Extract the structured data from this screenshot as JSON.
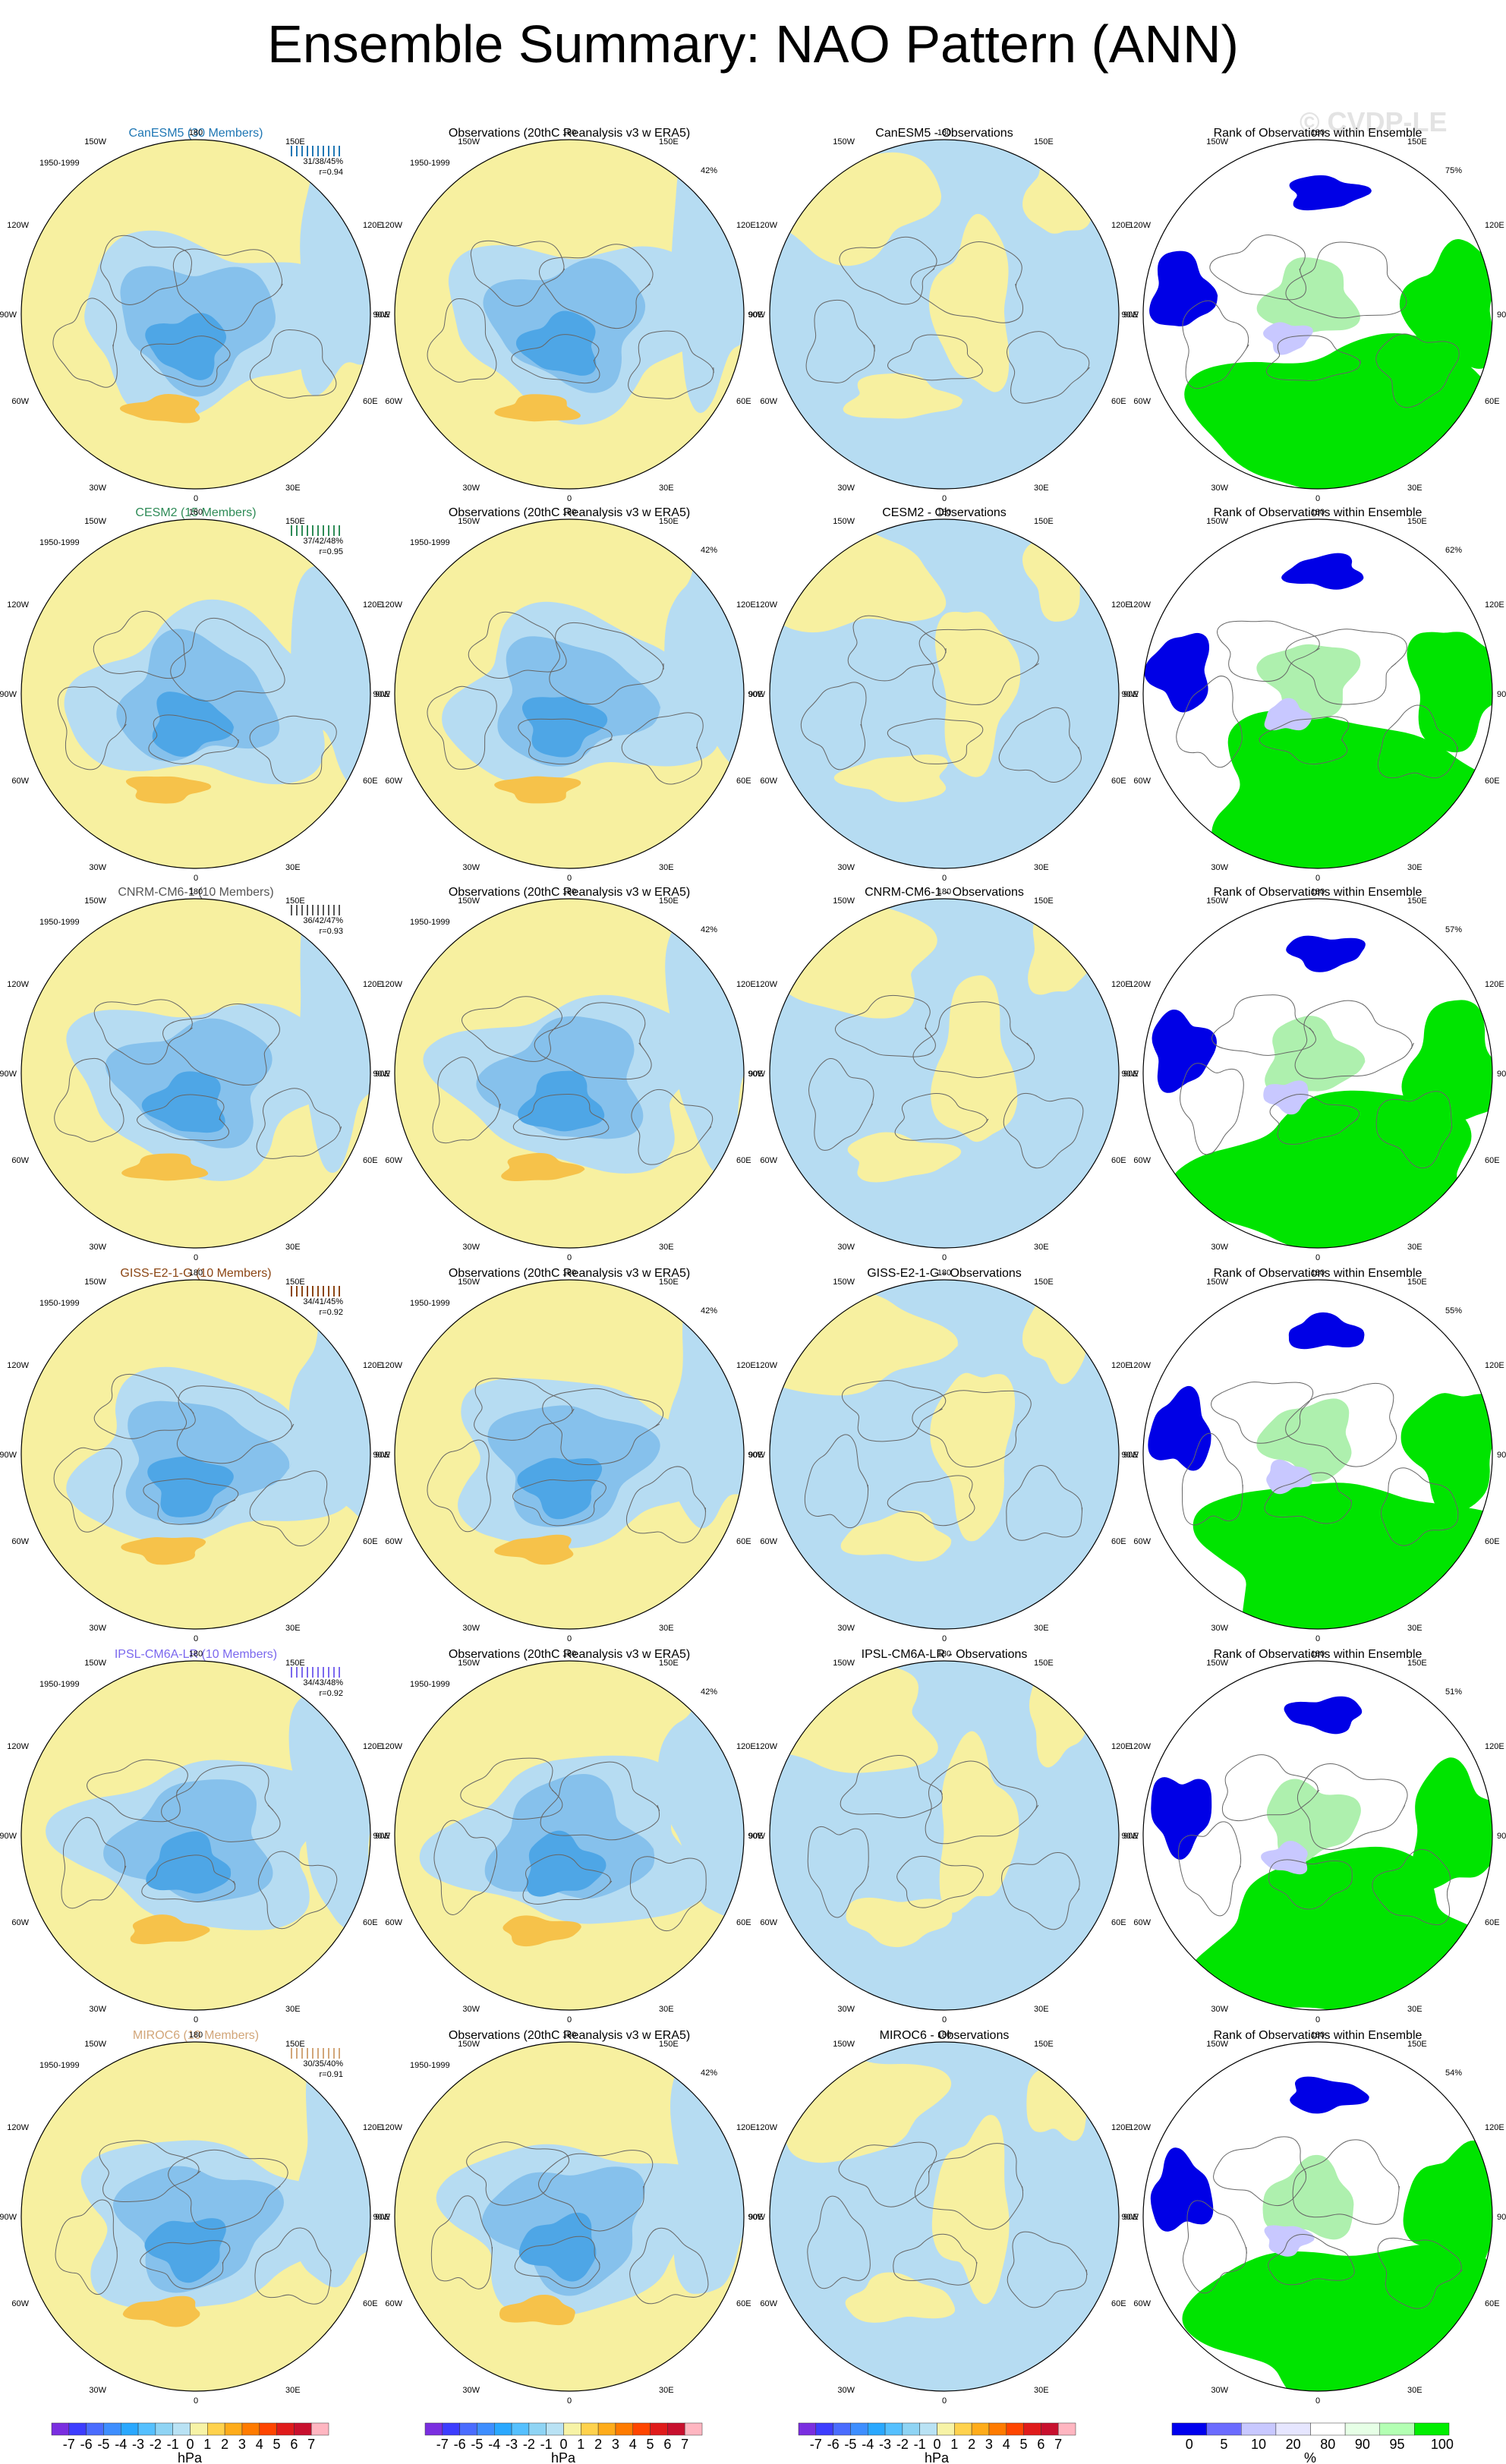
{
  "title": "Ensemble Summary: NAO Pattern (ANN)",
  "watermark": "© CVDP-LE",
  "period": "1950-1999",
  "obs_title": "Observations (20thC Reanalysis v3 w ERA5)",
  "obs_pct": "42%",
  "rank_title": "Rank of Observations within Ensemble",
  "lon_labels": {
    "top": "180",
    "upper_left": "150W",
    "upper_right": "150E",
    "mid_left": "120W",
    "mid_right": "120E",
    "left": "90W",
    "right": "90E",
    "lower_left": "60W",
    "lower_right": "60E",
    "bottom_left": "30W",
    "bottom_right": "30E",
    "bottom": "0"
  },
  "models": [
    {
      "label": "CanESM5 (30 Members)",
      "color": "#1f77b4",
      "stats": "31/38/45%",
      "r": "r=0.94",
      "diff_title": "CanESM5 - Observations",
      "rank_pct": "75%"
    },
    {
      "label": "CESM2 (15 Members)",
      "color": "#2e8b57",
      "stats": "37/42/48%",
      "r": "r=0.95",
      "diff_title": "CESM2 - Observations",
      "rank_pct": "62%"
    },
    {
      "label": "CNRM-CM6-1 (10 Members)",
      "color": "#555555",
      "stats": "36/42/47%",
      "r": "r=0.93",
      "diff_title": "CNRM-CM6-1 - Observations",
      "rank_pct": "57%"
    },
    {
      "label": "GISS-E2-1-G (10 Members)",
      "color": "#8b4513",
      "stats": "34/41/45%",
      "r": "r=0.92",
      "diff_title": "GISS-E2-1-G - Observations",
      "rank_pct": "55%"
    },
    {
      "label": "IPSL-CM6A-LR (10 Members)",
      "color": "#7b68ee",
      "stats": "34/43/48%",
      "r": "r=0.92",
      "diff_title": "IPSL-CM6A-LR - Observations",
      "rank_pct": "51%"
    },
    {
      "label": "MIROC6 (10 Members)",
      "color": "#d2a679",
      "stats": "30/35/40%",
      "r": "r=0.91",
      "diff_title": "MIROC6 - Observations",
      "rank_pct": "54%"
    }
  ],
  "colorbar_hpa": {
    "labels": [
      "-7",
      "-6",
      "-5",
      "-4",
      "-3",
      "-2",
      "-1",
      "0",
      "1",
      "2",
      "3",
      "4",
      "5",
      "6",
      "7"
    ],
    "colors": [
      "#7a2ee0",
      "#3d3dff",
      "#4a6cff",
      "#3e8eff",
      "#2aa8ff",
      "#55c0ff",
      "#8fd4f4",
      "#b9e2f4",
      "#f7f3a6",
      "#ffd24d",
      "#ffac1a",
      "#ff7b00",
      "#ff4500",
      "#e01b1b",
      "#c8102e",
      "#ffb6c1"
    ],
    "unit": "hPa"
  },
  "colorbar_rank": {
    "labels": [
      "0",
      "5",
      "10",
      "20",
      "80",
      "90",
      "95",
      "100"
    ],
    "colors": [
      "#0000ee",
      "#6b6bff",
      "#c8c8ff",
      "#e6e6ff",
      "#ffffff",
      "#e6ffe6",
      "#b3ffb3",
      "#00ee00"
    ],
    "unit": "%"
  },
  "colors": {
    "pos": "#f7f0a0",
    "neg": "#b6dcf2",
    "neg2": "#86c1ec",
    "neg3": "#4ea6e6",
    "pos2": "#f6c24a",
    "rank_lo": "#0000e6",
    "rank_hi": "#00e400",
    "rank_mid": "#ffffff"
  }
}
